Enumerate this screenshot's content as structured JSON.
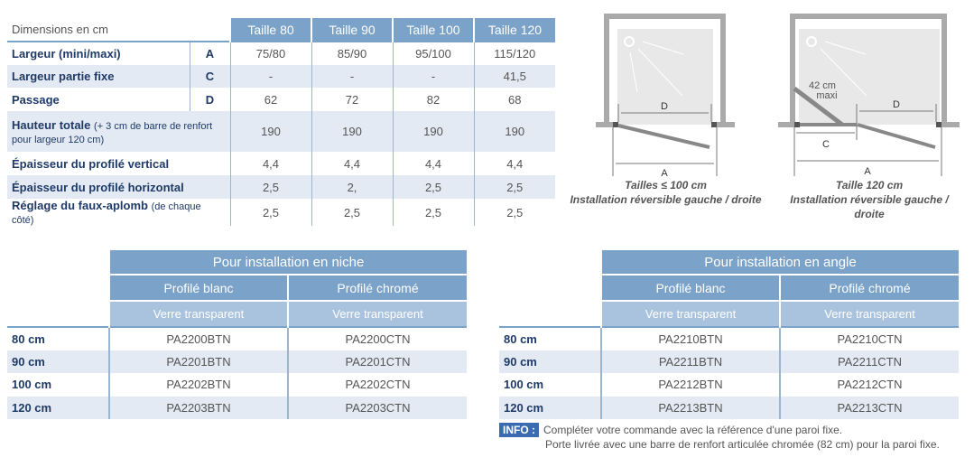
{
  "dimensions": {
    "title": "Dimensions en cm",
    "columns": [
      "Taille 80",
      "Taille 90",
      "Taille 100",
      "Taille 120"
    ],
    "rows": [
      {
        "label": "Largeur (mini/maxi)",
        "note": "",
        "letter": "A",
        "values": [
          "75/80",
          "85/90",
          "95/100",
          "115/120"
        ]
      },
      {
        "label": "Largeur partie fixe",
        "note": "",
        "letter": "C",
        "values": [
          "-",
          "-",
          "-",
          "41,5"
        ]
      },
      {
        "label": "Passage",
        "note": "",
        "letter": "D",
        "values": [
          "62",
          "72",
          "82",
          "68"
        ]
      },
      {
        "label": "Hauteur totale",
        "note": "(+ 3 cm de barre de renfort pour largeur 120 cm)",
        "letter": "",
        "values": [
          "190",
          "190",
          "190",
          "190"
        ]
      },
      {
        "label": "Épaisseur du profilé vertical",
        "note": "",
        "letter": "",
        "values": [
          "4,4",
          "4,4",
          "4,4",
          "4,4"
        ]
      },
      {
        "label": "Épaisseur du profilé horizontal",
        "note": "",
        "letter": "",
        "values": [
          "2,5",
          "2,",
          "2,5",
          "2,5"
        ]
      },
      {
        "label": "Réglage du faux-aplomb",
        "note": "(de chaque côté)",
        "letter": "",
        "values": [
          "2,5",
          "2,5",
          "2,5",
          "2,5"
        ]
      }
    ]
  },
  "diagrams": [
    {
      "labels": {
        "d": "D",
        "a": "A"
      },
      "caption1": "Tailles ≤ 100 cm",
      "caption2": "Installation réversible gauche / droite"
    },
    {
      "labels": {
        "d": "D",
        "a": "A",
        "c": "C",
        "fixed1": "42 cm",
        "fixed2": "maxi"
      },
      "caption1": "Taille 120 cm",
      "caption2": "Installation réversible gauche / droite"
    }
  ],
  "niche": {
    "title": "Pour installation en niche",
    "profiles": [
      "Profilé blanc",
      "Profilé chromé"
    ],
    "glass": [
      "Verre transparent",
      "Verre transparent"
    ],
    "rows": [
      {
        "size": "80 cm",
        "refs": [
          "PA2200BTN",
          "PA2200CTN"
        ]
      },
      {
        "size": "90 cm",
        "refs": [
          "PA2201BTN",
          "PA2201CTN"
        ]
      },
      {
        "size": "100 cm",
        "refs": [
          "PA2202BTN",
          "PA2202CTN"
        ]
      },
      {
        "size": "120 cm",
        "refs": [
          "PA2203BTN",
          "PA2203CTN"
        ]
      }
    ]
  },
  "angle": {
    "title": "Pour installation en angle",
    "profiles": [
      "Profilé blanc",
      "Profilé chromé"
    ],
    "glass": [
      "Verre transparent",
      "Verre transparent"
    ],
    "rows": [
      {
        "size": "80 cm",
        "refs": [
          "PA2210BTN",
          "PA2210CTN"
        ]
      },
      {
        "size": "90 cm",
        "refs": [
          "PA2211BTN",
          "PA2211CTN"
        ]
      },
      {
        "size": "100 cm",
        "refs": [
          "PA2212BTN",
          "PA2212CTN"
        ]
      },
      {
        "size": "120 cm",
        "refs": [
          "PA2213BTN",
          "PA2213CTN"
        ]
      }
    ]
  },
  "info": {
    "badge": "INFO :",
    "line1": "Compléter votre commande avec la référence d'une paroi fixe.",
    "line2": "Porte livrée avec une barre de renfort articulée chromée (82 cm) pour la paroi fixe."
  },
  "colors": {
    "header": "#7ba2c8",
    "subheader": "#a9c2dd",
    "row_alt": "#e3eaf3",
    "label": "#1f3a68",
    "badge": "#3a6bb0"
  }
}
